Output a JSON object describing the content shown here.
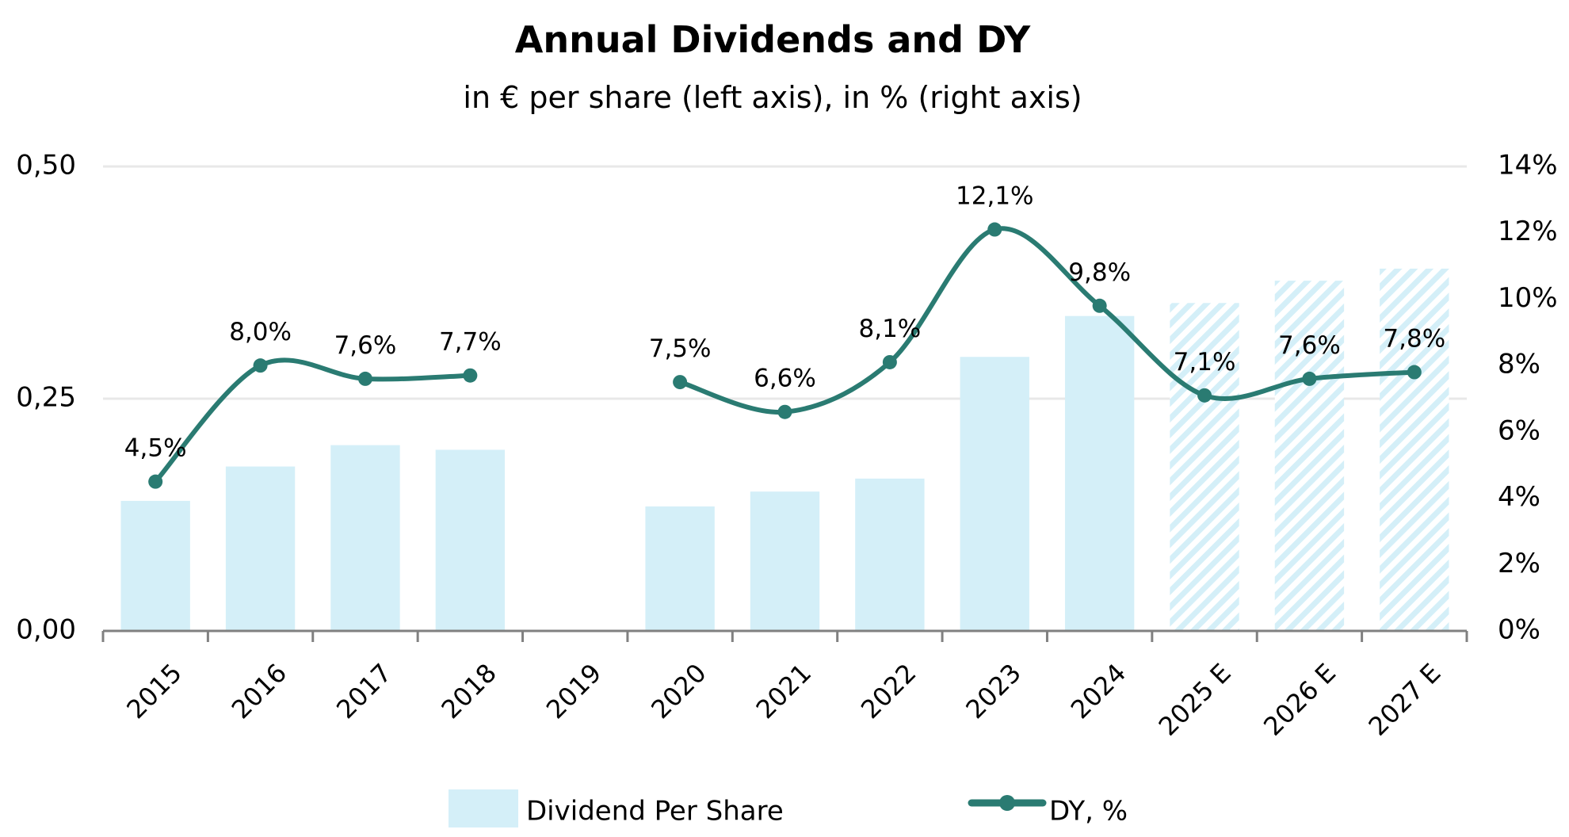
{
  "chart_data": {
    "type": "bar+line",
    "title": "Annual Dividends and DY",
    "subtitle": "in € per share (left axis), in % (right axis)",
    "categories": [
      "2015",
      "2016",
      "2017",
      "2018",
      "2019",
      "2020",
      "2021",
      "2022",
      "2023",
      "2024",
      "2025 E",
      "2026 E",
      "2027 E"
    ],
    "estimate_flags": [
      false,
      false,
      false,
      false,
      false,
      false,
      false,
      false,
      false,
      false,
      true,
      true,
      true
    ],
    "series": [
      {
        "name": "Dividend Per Share",
        "type": "bar",
        "axis": "left",
        "color": "#d4eff8",
        "values": [
          0.14,
          0.177,
          0.2,
          0.195,
          null,
          0.134,
          0.15,
          0.164,
          0.295,
          0.339,
          0.353,
          0.377,
          0.39
        ]
      },
      {
        "name": "DY, %",
        "type": "line",
        "axis": "right",
        "color": "#2a7b72",
        "smooth": true,
        "values": [
          4.5,
          8.0,
          7.6,
          7.7,
          null,
          7.5,
          6.6,
          8.1,
          12.1,
          9.8,
          7.1,
          7.6,
          7.8
        ],
        "labels": [
          "4,5%",
          "8,0%",
          "7,6%",
          "7,7%",
          "",
          "7,5%",
          "6,6%",
          "8,1%",
          "12,1%",
          "9,8%",
          "7,1%",
          "7,6%",
          "7,8%"
        ]
      }
    ],
    "left_axis": {
      "ylim": [
        0,
        0.5
      ],
      "ticks": [
        0,
        0.25,
        0.5
      ],
      "tick_labels": [
        "0,00",
        "0,25",
        "0,50"
      ]
    },
    "right_axis": {
      "ylim": [
        0,
        14
      ],
      "ticks": [
        0,
        2,
        4,
        6,
        8,
        10,
        12,
        14
      ],
      "tick_labels": [
        "0%",
        "2%",
        "4%",
        "6%",
        "8%",
        "10%",
        "12%",
        "14%"
      ]
    },
    "grid": true,
    "legend": {
      "position": "bottom",
      "entries": [
        "Dividend Per Share",
        "DY, %"
      ]
    },
    "xlabel": "",
    "ylabel": ""
  }
}
